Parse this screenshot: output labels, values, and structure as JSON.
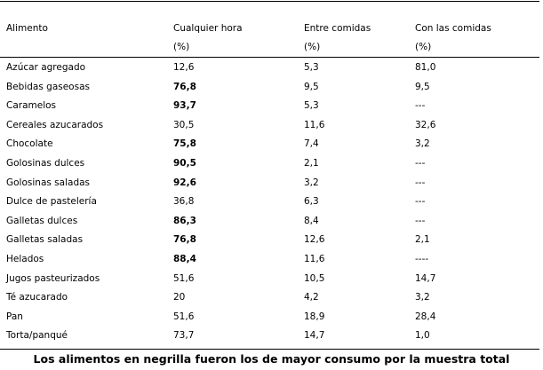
{
  "table": {
    "headers": [
      {
        "line1": "Alimento",
        "line2": ""
      },
      {
        "line1": "Cualquier hora",
        "line2": "(%)"
      },
      {
        "line1": "Entre comidas",
        "line2": "(%)"
      },
      {
        "line1": "Con las comidas",
        "line2": "(%)"
      }
    ],
    "rows": [
      {
        "food": "Azúcar agregado",
        "any": "12,6",
        "any_bold": false,
        "between": "5,3",
        "with": "81,0"
      },
      {
        "food": "Bebidas gaseosas",
        "any": "76,8",
        "any_bold": true,
        "between": "9,5",
        "with": "9,5"
      },
      {
        "food": "Caramelos",
        "any": "93,7",
        "any_bold": true,
        "between": "5,3",
        "with": "---"
      },
      {
        "food": "Cereales azucarados",
        "any": "30,5",
        "any_bold": false,
        "between": "11,6",
        "with": "32,6"
      },
      {
        "food": "Chocolate",
        "any": "75,8",
        "any_bold": true,
        "between": "7,4",
        "with": "3,2"
      },
      {
        "food": "Golosinas dulces",
        "any": "90,5",
        "any_bold": true,
        "between": "2,1",
        "with": "---"
      },
      {
        "food": "Golosinas saladas",
        "any": "92,6",
        "any_bold": true,
        "between": "3,2",
        "with": "---"
      },
      {
        "food": "Dulce de pastelería",
        "any": "36,8",
        "any_bold": false,
        "between": "6,3",
        "with": "---"
      },
      {
        "food": "Galletas dulces",
        "any": "86,3",
        "any_bold": true,
        "between": "8,4",
        "with": "---"
      },
      {
        "food": "Galletas saladas",
        "any": "76,8",
        "any_bold": true,
        "between": "12,6",
        "with": "2,1"
      },
      {
        "food": "Helados",
        "any": "88,4",
        "any_bold": true,
        "between": "11,6",
        "with": "----"
      },
      {
        "food": "Jugos pasteurizados",
        "any": "51,6",
        "any_bold": false,
        "between": "10,5",
        "with": "14,7"
      },
      {
        "food": "Té azucarado",
        "any": "20",
        "any_bold": false,
        "between": "4,2",
        "with": "3,2"
      },
      {
        "food": "Pan",
        "any": "51,6",
        "any_bold": false,
        "between": "18,9",
        "with": "28,4"
      },
      {
        "food": "Torta/panqué",
        "any": "73,7",
        "any_bold": false,
        "between": "14,7",
        "with": "1,0"
      }
    ]
  },
  "footnote": "Los alimentos en negrilla fueron los de mayor consumo por la muestra total"
}
